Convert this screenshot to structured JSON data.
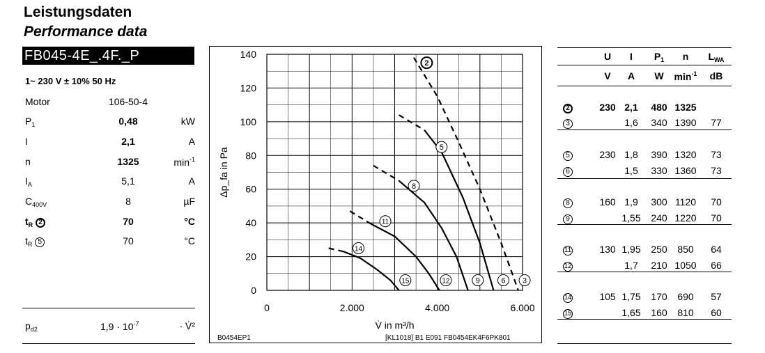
{
  "title_de": "Leistungsdaten",
  "title_en": "Performance data",
  "model": "FB045-4E_.4F._P",
  "supply": "1~ 230 V ± 10% 50 Hz",
  "specs": [
    {
      "label": "Motor",
      "value": "106-50-4",
      "unit": ""
    },
    {
      "label": "P",
      "sub": "1",
      "value": "0,48",
      "unit": "kW",
      "bold_val": true
    },
    {
      "label": "I",
      "sub": "",
      "value": "2,1",
      "unit": "A",
      "bold_val": true
    },
    {
      "label": "n",
      "sub": "",
      "value": "1325",
      "unit": "min",
      "unit_sup": "-1",
      "bold_val": true
    },
    {
      "label": "I",
      "sub": "A",
      "value": "5,1",
      "unit": "A"
    },
    {
      "label": "C",
      "sub": "400V",
      "value": "8",
      "unit": "µF"
    },
    {
      "label": "t",
      "sub": "R",
      "circle": "2",
      "value": "70",
      "unit": "°C",
      "bold_row": true
    },
    {
      "label": "t",
      "sub": "R",
      "circle": "5",
      "value": "70",
      "unit": "°C"
    }
  ],
  "pd2": {
    "label": "p",
    "sub": "d2",
    "value": "1,9 · 10",
    "exp": "-7",
    "unit": "· V̇²"
  },
  "footer_left": "B0454EP1",
  "footer_right": "[KL1018] B1 E091 FB0454EK4F6PK801",
  "chart_data": {
    "type": "line",
    "xlabel": "V̇ in m³/h",
    "ylabel": "Δp_fa in Pa",
    "xlim": [
      0,
      6000
    ],
    "ylim": [
      0,
      140
    ],
    "xticks": [
      "0",
      "2.000",
      "4.000",
      "6.000"
    ],
    "xtick_values": [
      0,
      2000,
      4000,
      6000
    ],
    "yticks": [
      "0",
      "20",
      "40",
      "60",
      "80",
      "100",
      "120",
      "140"
    ],
    "ytick_values": [
      0,
      20,
      40,
      60,
      80,
      100,
      120,
      140
    ],
    "grid": true,
    "series": [
      {
        "name": "2",
        "dashed": [
          [
            3450,
            138
          ],
          [
            4000,
            115
          ],
          [
            4500,
            88
          ],
          [
            5000,
            60
          ],
          [
            5500,
            28
          ],
          [
            5900,
            0
          ]
        ]
      },
      {
        "name": "5",
        "solid": [
          [
            3700,
            95
          ],
          [
            4100,
            82
          ],
          [
            4600,
            55
          ],
          [
            5000,
            28
          ],
          [
            5320,
            0
          ]
        ],
        "dashed": [
          [
            3100,
            104
          ],
          [
            3700,
            95
          ]
        ]
      },
      {
        "name": "8",
        "solid": [
          [
            3100,
            65
          ],
          [
            3700,
            52
          ],
          [
            4100,
            37
          ],
          [
            4450,
            20
          ],
          [
            4720,
            0
          ]
        ],
        "dashed": [
          [
            2500,
            74
          ],
          [
            3100,
            65
          ]
        ]
      },
      {
        "name": "11",
        "solid": [
          [
            2400,
            40
          ],
          [
            3000,
            32
          ],
          [
            3500,
            20
          ],
          [
            3800,
            10
          ],
          [
            4050,
            0
          ]
        ],
        "dashed": [
          [
            1950,
            47
          ],
          [
            2400,
            40
          ]
        ]
      },
      {
        "name": "14",
        "solid": [
          [
            1800,
            23
          ],
          [
            2200,
            19
          ],
          [
            2600,
            12
          ],
          [
            2900,
            6
          ],
          [
            3100,
            0
          ]
        ],
        "dashed": [
          [
            1450,
            25
          ],
          [
            1800,
            23
          ]
        ]
      }
    ],
    "marker_labels": [
      {
        "label": "2",
        "x": 3750,
        "y": 135
      },
      {
        "label": "5",
        "x": 4100,
        "y": 85
      },
      {
        "label": "8",
        "x": 3450,
        "y": 62
      },
      {
        "label": "11",
        "x": 2780,
        "y": 41
      },
      {
        "label": "14",
        "x": 2150,
        "y": 25
      },
      {
        "label": "15",
        "x": 3250,
        "y": 6
      },
      {
        "label": "12",
        "x": 4200,
        "y": 6
      },
      {
        "label": "9",
        "x": 4950,
        "y": 6
      },
      {
        "label": "6",
        "x": 5550,
        "y": 6
      },
      {
        "label": "3",
        "x": 6050,
        "y": 6
      }
    ]
  },
  "perf_table": {
    "headers": [
      "U",
      "I",
      "P",
      "n",
      "L"
    ],
    "header_subs": [
      "",
      "",
      "1",
      "",
      "WA"
    ],
    "units": [
      "V",
      "A",
      "W",
      "min",
      "dB"
    ],
    "unit_sups": [
      "",
      "",
      "",
      "-1",
      ""
    ],
    "rows": [
      {
        "id": "2",
        "bold": true,
        "U": "230",
        "I": "2,1",
        "P": "480",
        "n": "1325",
        "L": ""
      },
      {
        "id": "3",
        "U": "",
        "I": "1,6",
        "P": "340",
        "n": "1390",
        "L": "77"
      },
      {
        "id": "5",
        "U": "230",
        "I": "1,8",
        "P": "390",
        "n": "1320",
        "L": "73"
      },
      {
        "id": "6",
        "U": "",
        "I": "1,5",
        "P": "330",
        "n": "1360",
        "L": "73"
      },
      {
        "id": "8",
        "U": "160",
        "I": "1,9",
        "P": "300",
        "n": "1120",
        "L": "70"
      },
      {
        "id": "9",
        "U": "",
        "I": "1,55",
        "P": "240",
        "n": "1220",
        "L": "70"
      },
      {
        "id": "11",
        "U": "130",
        "I": "1,95",
        "P": "250",
        "n": "850",
        "L": "64"
      },
      {
        "id": "12",
        "U": "",
        "I": "1,7",
        "P": "210",
        "n": "1050",
        "L": "66"
      },
      {
        "id": "14",
        "U": "105",
        "I": "1,75",
        "P": "170",
        "n": "690",
        "L": "57"
      },
      {
        "id": "15",
        "U": "",
        "I": "1,65",
        "P": "160",
        "n": "810",
        "L": "60"
      }
    ]
  }
}
